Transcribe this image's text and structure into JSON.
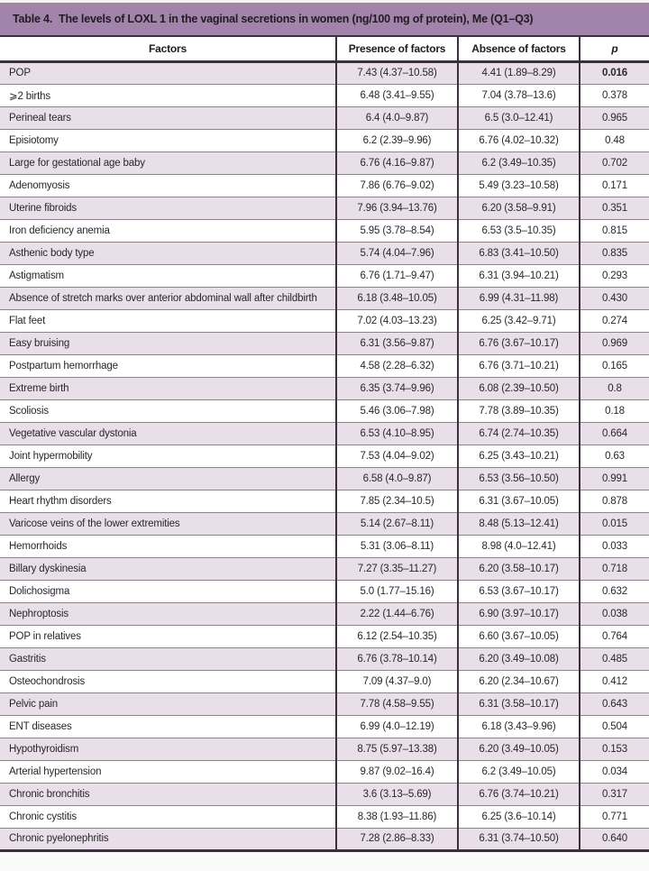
{
  "title_bar": {
    "label": "Table 4.",
    "title": "The levels of LOXL 1 in the vaginal secretions in women (ng/100 mg of protein), Me (Q1–Q3)"
  },
  "colors": {
    "header_purple": "#a283aa",
    "row_stripe_lavender": "#e8dfe9",
    "rule_dark": "#3c2e3f",
    "significant_p_bold": "0.016"
  },
  "chart_data": {
    "type": "table",
    "title": "Table 4. The levels of LOXL 1 in the vaginal secretions in women (ng/100 mg of protein), Me (Q1–Q3)",
    "columns": [
      "Factors",
      "Presence of factors",
      "Absence of factors",
      "p"
    ],
    "rows": [
      {
        "factor": "POP",
        "presence": "7.43 (4.37–10.58)",
        "absence": "4.41 (1.89–8.29)",
        "p": "0.016",
        "p_bold": true
      },
      {
        "factor": "⩾2 births",
        "presence": "6.48 (3.41–9.55)",
        "absence": "7.04 (3.78–13.6)",
        "p": "0.378",
        "p_bold": false
      },
      {
        "factor": "Perineal tears",
        "presence": "6.4 (4.0–9.87)",
        "absence": "6.5 (3.0–12.41)",
        "p": "0.965",
        "p_bold": false
      },
      {
        "factor": "Episiotomy",
        "presence": "6.2 (2.39–9.96)",
        "absence": "6.76 (4.02–10.32)",
        "p": "0.48",
        "p_bold": false
      },
      {
        "factor": "Large for gestational age baby",
        "presence": "6.76 (4.16–9.87)",
        "absence": "6.2 (3.49–10.35)",
        "p": "0.702",
        "p_bold": false
      },
      {
        "factor": "Adenomyosis",
        "presence": "7.86 (6.76–9.02)",
        "absence": "5.49 (3.23–10.58)",
        "p": "0.171",
        "p_bold": false
      },
      {
        "factor": "Uterine fibroids",
        "presence": "7.96 (3.94–13.76)",
        "absence": "6.20 (3.58–9.91)",
        "p": "0.351",
        "p_bold": false
      },
      {
        "factor": "Iron deficiency anemia",
        "presence": "5.95 (3.78–8.54)",
        "absence": "6.53 (3.5–10.35)",
        "p": "0.815",
        "p_bold": false
      },
      {
        "factor": "Asthenic body type",
        "presence": "5.74 (4.04–7.96)",
        "absence": "6.83 (3.41–10.50)",
        "p": "0.835",
        "p_bold": false
      },
      {
        "factor": "Astigmatism",
        "presence": "6.76 (1.71–9.47)",
        "absence": "6.31 (3.94–10.21)",
        "p": "0.293",
        "p_bold": false
      },
      {
        "factor": "Absence of stretch marks over anterior abdominal wall after childbirth",
        "presence": "6.18 (3.48–10.05)",
        "absence": "6.99 (4.31–11.98)",
        "p": "0.430",
        "p_bold": false
      },
      {
        "factor": "Flat feet",
        "presence": "7.02 (4.03–13.23)",
        "absence": "6.25 (3.42–9.71)",
        "p": "0.274",
        "p_bold": false
      },
      {
        "factor": "Easy bruising",
        "presence": "6.31 (3.56–9.87)",
        "absence": "6.76 (3.67–10.17)",
        "p": "0.969",
        "p_bold": false
      },
      {
        "factor": "Postpartum hemorrhage",
        "presence": "4.58 (2.28–6.32)",
        "absence": "6.76 (3.71–10.21)",
        "p": "0.165",
        "p_bold": false
      },
      {
        "factor": "Extreme birth",
        "presence": "6.35 (3.74–9.96)",
        "absence": "6.08 (2.39–10.50)",
        "p": "0.8",
        "p_bold": false
      },
      {
        "factor": "Scoliosis",
        "presence": "5.46 (3.06–7.98)",
        "absence": "7.78 (3.89–10.35)",
        "p": "0.18",
        "p_bold": false
      },
      {
        "factor": "Vegetative vascular dystonia",
        "presence": "6.53 (4.10–8.95)",
        "absence": "6.74 (2.74–10.35)",
        "p": "0.664",
        "p_bold": false
      },
      {
        "factor": "Joint hypermobility",
        "presence": "7.53 (4.04–9.02)",
        "absence": "6.25 (3.43–10.21)",
        "p": "0.63",
        "p_bold": false
      },
      {
        "factor": "Allergy",
        "presence": "6.58 (4.0–9.87)",
        "absence": "6.53 (3.56–10.50)",
        "p": "0.991",
        "p_bold": false
      },
      {
        "factor": "Heart rhythm disorders",
        "presence": "7.85 (2.34–10.5)",
        "absence": "6.31 (3.67–10.05)",
        "p": "0.878",
        "p_bold": false
      },
      {
        "factor": "Varicose veins of the lower extremities",
        "presence": "5.14 (2.67–8.11)",
        "absence": "8.48 (5.13–12.41)",
        "p": "0.015",
        "p_bold": false
      },
      {
        "factor": "Hemorrhoids",
        "presence": "5.31 (3.06–8.11)",
        "absence": "8.98 (4.0–12.41)",
        "p": "0.033",
        "p_bold": false
      },
      {
        "factor": "Billary dyskinesia",
        "presence": "7.27 (3.35–11.27)",
        "absence": "6.20 (3.58–10.17)",
        "p": "0.718",
        "p_bold": false
      },
      {
        "factor": "Dolichosigma",
        "presence": "5.0 (1.77–15.16)",
        "absence": "6.53 (3.67–10.17)",
        "p": "0.632",
        "p_bold": false
      },
      {
        "factor": "Nephroptosis",
        "presence": "2.22 (1.44–6.76)",
        "absence": "6.90 (3.97–10.17)",
        "p": "0.038",
        "p_bold": false
      },
      {
        "factor": "POP in relatives",
        "presence": "6.12 (2.54–10.35)",
        "absence": "6.60 (3.67–10.05)",
        "p": "0.764",
        "p_bold": false
      },
      {
        "factor": "Gastritis",
        "presence": "6.76 (3.78–10.14)",
        "absence": "6.20 (3.49–10.08)",
        "p": "0.485",
        "p_bold": false
      },
      {
        "factor": "Osteochondrosis",
        "presence": "7.09 (4.37–9.0)",
        "absence": "6.20 (2.34–10.67)",
        "p": "0.412",
        "p_bold": false
      },
      {
        "factor": "Pelvic pain",
        "presence": "7.78 (4.58–9.55)",
        "absence": "6.31 (3.58–10.17)",
        "p": "0.643",
        "p_bold": false
      },
      {
        "factor": "ENT diseases",
        "presence": "6.99 (4.0–12.19)",
        "absence": "6.18 (3.43–9.96)",
        "p": "0.504",
        "p_bold": false
      },
      {
        "factor": "Hypothyroidism",
        "presence": "8.75 (5.97–13.38)",
        "absence": "6.20 (3.49–10.05)",
        "p": "0.153",
        "p_bold": false
      },
      {
        "factor": "Arterial hypertension",
        "presence": "9.87 (9.02–16.4)",
        "absence": "6.2 (3.49–10.05)",
        "p": "0.034",
        "p_bold": false
      },
      {
        "factor": "Chronic bronchitis",
        "presence": "3.6 (3.13–5.69)",
        "absence": "6.76 (3.74–10.21)",
        "p": "0.317",
        "p_bold": false
      },
      {
        "factor": "Chronic cystitis",
        "presence": "8.38 (1.93–11.86)",
        "absence": "6.25 (3.6–10.14)",
        "p": "0.771",
        "p_bold": false
      },
      {
        "factor": "Chronic pyelonephritis",
        "presence": "7.28 (2.86–8.33)",
        "absence": "6.31 (3.74–10.50)",
        "p": "0.640",
        "p_bold": false
      }
    ]
  }
}
